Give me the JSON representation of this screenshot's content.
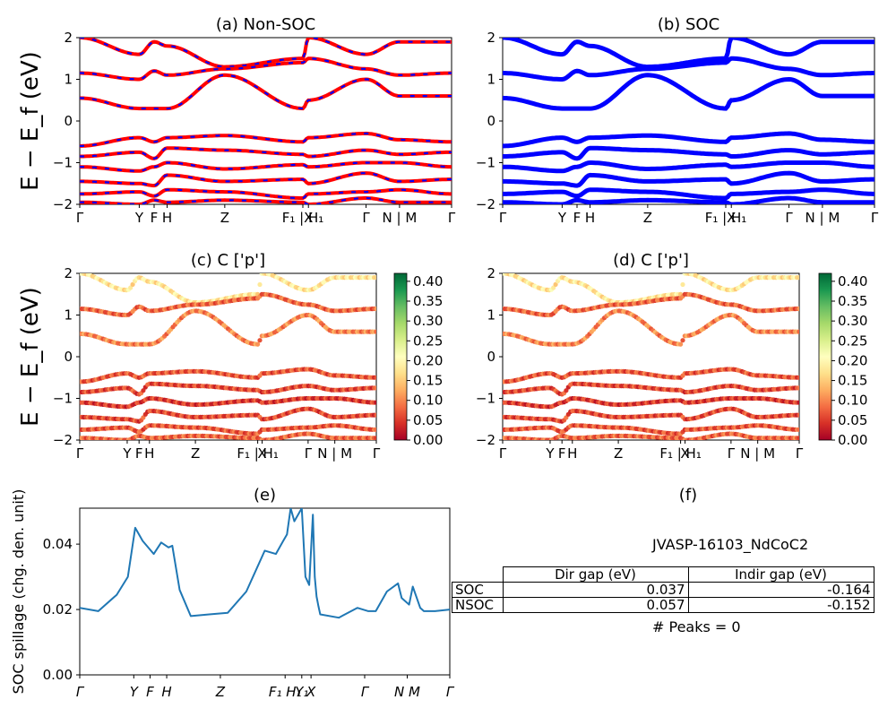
{
  "chart_data": [
    {
      "id": "a",
      "type": "line",
      "title": "(a) Non-SOC",
      "ylabel": "E − E_f (eV)",
      "ylim": [
        -2,
        2
      ],
      "yticks": [
        "2",
        "1",
        "0",
        "−1",
        "−2"
      ],
      "kpath": [
        "Γ",
        "Y",
        "F",
        "H",
        "Z",
        "F₁ | H₁",
        "X",
        "Γ",
        "N | M",
        "Γ"
      ],
      "series": [
        {
          "values_at_kpath": [
            2.0,
            1.6,
            1.9,
            1.8,
            1.3,
            1.5,
            2.0,
            1.6,
            1.9,
            1.9
          ]
        },
        {
          "values_at_kpath": [
            1.15,
            1.0,
            1.2,
            1.1,
            1.25,
            1.4,
            1.5,
            1.25,
            1.1,
            1.15
          ]
        },
        {
          "values_at_kpath": [
            0.55,
            0.3,
            0.3,
            0.3,
            1.1,
            0.3,
            0.5,
            1.0,
            0.6,
            0.6
          ]
        },
        {
          "values_at_kpath": [
            -0.6,
            -0.4,
            -0.5,
            -0.4,
            -0.35,
            -0.5,
            -0.4,
            -0.3,
            -0.45,
            -0.5
          ]
        },
        {
          "values_at_kpath": [
            -0.85,
            -0.75,
            -0.9,
            -0.65,
            -0.7,
            -0.8,
            -0.85,
            -0.7,
            -0.8,
            -0.75
          ]
        },
        {
          "values_at_kpath": [
            -1.1,
            -1.2,
            -1.1,
            -1.0,
            -1.15,
            -1.05,
            -1.1,
            -1.0,
            -1.0,
            -1.1
          ]
        },
        {
          "values_at_kpath": [
            -1.45,
            -1.5,
            -1.55,
            -1.3,
            -1.45,
            -1.4,
            -1.5,
            -1.25,
            -1.45,
            -1.4
          ]
        },
        {
          "values_at_kpath": [
            -1.75,
            -1.7,
            -1.8,
            -1.65,
            -1.7,
            -1.85,
            -1.75,
            -1.7,
            -1.65,
            -1.75
          ]
        },
        {
          "values_at_kpath": [
            -1.95,
            -2.0,
            -1.9,
            -1.95,
            -1.9,
            -1.95,
            -2.0,
            -1.85,
            -1.95,
            -1.95
          ]
        }
      ],
      "colors": {
        "line": "#ff0000",
        "dash": "#0000ff"
      }
    },
    {
      "id": "b",
      "type": "line",
      "title": "(b) SOC",
      "ylim": [
        -2,
        2
      ],
      "yticks": [
        "2",
        "1",
        "0",
        "−1",
        "−2"
      ],
      "kpath": [
        "Γ",
        "Y",
        "F",
        "H",
        "Z",
        "F₁ | H₁",
        "X",
        "Γ",
        "N | M",
        "Γ"
      ],
      "series": [
        {
          "values_at_kpath": [
            2.0,
            1.6,
            1.9,
            1.8,
            1.3,
            1.5,
            2.0,
            1.6,
            1.9,
            1.9
          ]
        },
        {
          "values_at_kpath": [
            1.15,
            1.0,
            1.2,
            1.1,
            1.25,
            1.4,
            1.5,
            1.25,
            1.1,
            1.15
          ]
        },
        {
          "values_at_kpath": [
            0.55,
            0.3,
            0.3,
            0.3,
            1.1,
            0.3,
            0.5,
            1.0,
            0.6,
            0.6
          ]
        },
        {
          "values_at_kpath": [
            -0.6,
            -0.4,
            -0.5,
            -0.4,
            -0.35,
            -0.5,
            -0.4,
            -0.3,
            -0.45,
            -0.5
          ]
        },
        {
          "values_at_kpath": [
            -0.85,
            -0.75,
            -0.9,
            -0.65,
            -0.7,
            -0.8,
            -0.85,
            -0.7,
            -0.8,
            -0.75
          ]
        },
        {
          "values_at_kpath": [
            -1.1,
            -1.2,
            -1.1,
            -1.0,
            -1.15,
            -1.05,
            -1.1,
            -1.0,
            -1.0,
            -1.1
          ]
        },
        {
          "values_at_kpath": [
            -1.45,
            -1.5,
            -1.55,
            -1.3,
            -1.45,
            -1.4,
            -1.5,
            -1.25,
            -1.45,
            -1.4
          ]
        },
        {
          "values_at_kpath": [
            -1.75,
            -1.7,
            -1.8,
            -1.65,
            -1.7,
            -1.85,
            -1.75,
            -1.7,
            -1.65,
            -1.75
          ]
        },
        {
          "values_at_kpath": [
            -1.95,
            -2.0,
            -1.9,
            -1.95,
            -1.9,
            -1.95,
            -2.0,
            -1.85,
            -1.95,
            -1.95
          ]
        }
      ],
      "colors": {
        "line": "#0000ff"
      }
    },
    {
      "id": "c",
      "type": "scatter",
      "title": "(c)  C ['p']",
      "ylabel": "E − E_f (eV)",
      "ylim": [
        -2,
        2
      ],
      "yticks": [
        "2",
        "1",
        "0",
        "−1",
        "−2"
      ],
      "kpath": [
        "Γ",
        "Y",
        "F",
        "H",
        "Z",
        "F₁ | H₁",
        "X",
        "Γ",
        "N | M",
        "Γ"
      ],
      "colorbar": {
        "range": [
          0,
          0.42
        ],
        "ticks": [
          "0.00",
          "0.05",
          "0.10",
          "0.15",
          "0.20",
          "0.25",
          "0.30",
          "0.35",
          "0.40"
        ],
        "colormap": "RdYlGn"
      },
      "weight_by_band": [
        0.18,
        0.08,
        0.1,
        0.07,
        0.06,
        0.05,
        0.06,
        0.07,
        0.08
      ]
    },
    {
      "id": "d",
      "type": "scatter",
      "title": "(d) C ['p']",
      "ylim": [
        -2,
        2
      ],
      "yticks": [
        "2",
        "1",
        "0",
        "−1",
        "−2"
      ],
      "kpath": [
        "Γ",
        "Y",
        "F",
        "H",
        "Z",
        "F₁ | H₁",
        "X",
        "Γ",
        "N | M",
        "Γ"
      ],
      "colorbar": {
        "range": [
          0,
          0.42
        ],
        "ticks": [
          "0.00",
          "0.05",
          "0.10",
          "0.15",
          "0.20",
          "0.25",
          "0.30",
          "0.35",
          "0.40"
        ],
        "colormap": "RdYlGn"
      },
      "weight_by_band": [
        0.18,
        0.08,
        0.1,
        0.07,
        0.06,
        0.05,
        0.06,
        0.07,
        0.08
      ]
    },
    {
      "id": "e",
      "type": "line",
      "title": "(e)",
      "ylabel": "SOC spillage (chg. den. unit)",
      "ylim": [
        0,
        0.051
      ],
      "yticks": [
        "0.00",
        "0.02",
        "0.04"
      ],
      "kpath": [
        "Γ",
        "Y",
        "F",
        "H",
        "Z",
        "F₁ H₁",
        "Y₁",
        "X",
        "Γ",
        "N M",
        "Γ"
      ],
      "x": [
        0,
        0.05,
        0.1,
        0.13,
        0.15,
        0.17,
        0.2,
        0.22,
        0.24,
        0.25,
        0.27,
        0.3,
        0.35,
        0.4,
        0.45,
        0.5,
        0.53,
        0.55,
        0.56,
        0.57,
        0.58,
        0.59,
        0.6,
        0.61,
        0.62,
        0.63,
        0.635,
        0.64,
        0.645,
        0.65,
        0.7,
        0.75,
        0.78,
        0.8,
        0.83,
        0.86,
        0.87,
        0.88,
        0.89,
        0.9,
        0.92,
        0.93,
        0.94,
        0.96,
        1.0
      ],
      "values": [
        0.0205,
        0.0195,
        0.0245,
        0.03,
        0.045,
        0.041,
        0.037,
        0.0405,
        0.039,
        0.0395,
        0.026,
        0.018,
        0.0185,
        0.019,
        0.0255,
        0.038,
        0.037,
        0.041,
        0.043,
        0.051,
        0.047,
        0.049,
        0.052,
        0.03,
        0.0275,
        0.049,
        0.03,
        0.024,
        0.021,
        0.0185,
        0.0175,
        0.0205,
        0.0195,
        0.0195,
        0.0255,
        0.028,
        0.0235,
        0.0225,
        0.0215,
        0.027,
        0.0205,
        0.0195,
        0.0195,
        0.0195,
        0.02
      ],
      "colors": {
        "line": "#1f77b4"
      }
    }
  ],
  "info": {
    "title": "(f)",
    "material": "JVASP-16103_NdCoC2",
    "table": {
      "headers": [
        "",
        "Dir gap (eV)",
        "Indir gap (eV)"
      ],
      "rows": [
        {
          "label": "SOC",
          "dir": "0.037",
          "indir": "-0.164"
        },
        {
          "label": "NSOC",
          "dir": "0.057",
          "indir": "-0.152"
        }
      ]
    },
    "peaks": "# Peaks = 0"
  }
}
